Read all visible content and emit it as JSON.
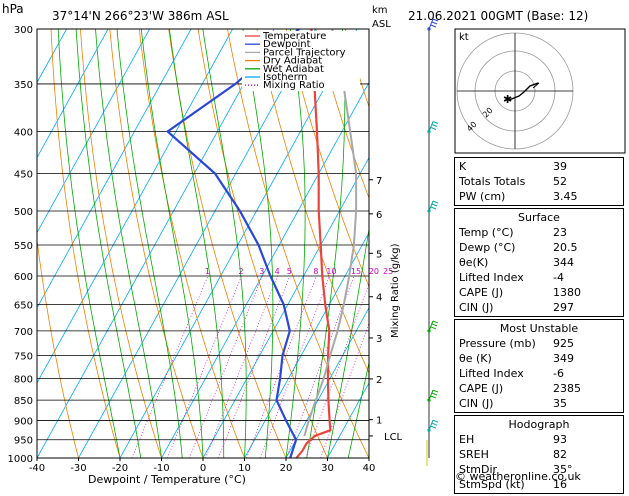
{
  "header": {
    "units_hpa": "hPa",
    "location": "37°14'N  266°23'W  386m  ASL",
    "units_km": "km",
    "units_asl": "ASL",
    "datetime": "21.06.2021  00GMT  (Base: 12)"
  },
  "legend": [
    "Temperature",
    "Dewpoint",
    "Parcel Trajectory",
    "Dry Adiabat",
    "Wet Adiabat",
    "Isotherm",
    "Mixing Ratio"
  ],
  "colors": {
    "temperature": "#e8453c",
    "dewpoint": "#2b47d8",
    "parcel": "#a8a8a8",
    "dry_adiabat": "#f08000",
    "wet_adiabat": "#00aa00",
    "isotherm": "#00aaff",
    "mixing_ratio": "#cc00cc"
  },
  "axis": {
    "xlabel": "Dewpoint / Temperature (°C)",
    "right_label": "Mixing Ratio (g/kg)"
  },
  "chart_data": {
    "type": "line",
    "title": "",
    "xlabel": "Dewpoint / Temperature (°C)",
    "ylabel": "hPa",
    "x_ticks": [
      -40,
      -30,
      -20,
      -10,
      0,
      10,
      20,
      30,
      40
    ],
    "pressure_ticks": [
      300,
      350,
      400,
      450,
      500,
      550,
      600,
      650,
      700,
      750,
      800,
      850,
      900,
      950,
      1000
    ],
    "ylim": [
      1000,
      300
    ],
    "height_km_ticks": [
      {
        "p": 458,
        "label": "7"
      },
      {
        "p": 504,
        "label": "6"
      },
      {
        "p": 563,
        "label": "5"
      },
      {
        "p": 636,
        "label": "4"
      },
      {
        "p": 714,
        "label": "3"
      },
      {
        "p": 801,
        "label": "2"
      },
      {
        "p": 898,
        "label": "1"
      },
      {
        "p": 940,
        "label": "LCL"
      }
    ],
    "mixing_ratio_labels": [
      "1",
      "2",
      "3",
      "4",
      "5",
      "8",
      "10",
      "15",
      "20",
      "25"
    ],
    "series": [
      {
        "name": "Temperature",
        "points": [
          [
            300,
            -31
          ],
          [
            350,
            -23
          ],
          [
            400,
            -16
          ],
          [
            450,
            -10
          ],
          [
            500,
            -5
          ],
          [
            550,
            0
          ],
          [
            600,
            4.5
          ],
          [
            650,
            9
          ],
          [
            700,
            13.5
          ],
          [
            750,
            16.5
          ],
          [
            800,
            19.5
          ],
          [
            850,
            22.5
          ],
          [
            900,
            25.5
          ],
          [
            925,
            27
          ],
          [
            940,
            24
          ],
          [
            960,
            23
          ],
          [
            980,
            23
          ],
          [
            1000,
            22.5
          ]
        ]
      },
      {
        "name": "Dewpoint",
        "points": [
          [
            300,
            -34
          ],
          [
            350,
            -42
          ],
          [
            400,
            -52
          ],
          [
            450,
            -35
          ],
          [
            500,
            -24
          ],
          [
            550,
            -15
          ],
          [
            600,
            -8
          ],
          [
            650,
            -1
          ],
          [
            700,
            4
          ],
          [
            750,
            5.5
          ],
          [
            800,
            8
          ],
          [
            850,
            10
          ],
          [
            900,
            15
          ],
          [
            950,
            20
          ],
          [
            1000,
            21
          ]
        ]
      },
      {
        "name": "Parcel Trajectory",
        "points": [
          [
            940,
            21.5
          ],
          [
            900,
            20.5
          ],
          [
            850,
            19.5
          ],
          [
            800,
            18.5
          ],
          [
            750,
            17
          ],
          [
            700,
            15.5
          ],
          [
            650,
            13.5
          ],
          [
            600,
            11
          ],
          [
            550,
            8
          ],
          [
            500,
            4
          ],
          [
            450,
            -1
          ],
          [
            400,
            -8
          ],
          [
            350,
            -16
          ],
          [
            300,
            -26
          ]
        ]
      }
    ]
  },
  "hodograph": {
    "unit": "kt",
    "ring_labels": [
      "20",
      "40"
    ]
  },
  "indices": {
    "k": {
      "label": "K",
      "value": "39"
    },
    "tt": {
      "label": "Totals Totals",
      "value": "52"
    },
    "pw": {
      "label": "PW (cm)",
      "value": "3.45"
    }
  },
  "surface": {
    "title": "Surface",
    "rows": [
      {
        "label": "Temp (°C)",
        "value": "23"
      },
      {
        "label": "Dewp (°C)",
        "value": "20.5"
      },
      {
        "label": "θe(K)",
        "value": "344"
      },
      {
        "label": "Lifted Index",
        "value": "-4"
      },
      {
        "label": "CAPE (J)",
        "value": "1380"
      },
      {
        "label": "CIN (J)",
        "value": "297"
      }
    ]
  },
  "most_unstable": {
    "title": "Most Unstable",
    "rows": [
      {
        "label": "Pressure (mb)",
        "value": "925"
      },
      {
        "label": "θe (K)",
        "value": "349"
      },
      {
        "label": "Lifted Index",
        "value": "-6"
      },
      {
        "label": "CAPE (J)",
        "value": "2385"
      },
      {
        "label": "CIN (J)",
        "value": "35"
      }
    ]
  },
  "hodo_params": {
    "title": "Hodograph",
    "rows": [
      {
        "label": "EH",
        "value": "93"
      },
      {
        "label": "SREH",
        "value": "82"
      },
      {
        "label": "StmDir",
        "value": "35°"
      },
      {
        "label": "StmSpd (kt)",
        "value": "16"
      }
    ]
  },
  "copyright": "© weatheronline.co.uk"
}
